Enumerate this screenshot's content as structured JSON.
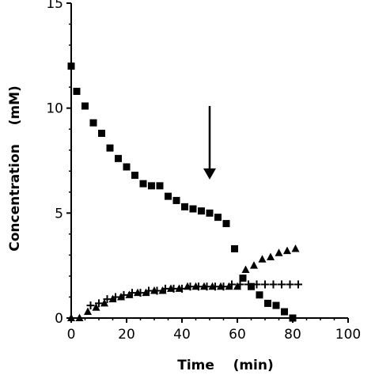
{
  "chart_data": {
    "type": "scatter",
    "title": "",
    "xlabel": "Time    (min)",
    "ylabel": "Concentration    (mM)",
    "xlim": [
      0,
      100
    ],
    "ylim": [
      0,
      15
    ],
    "xticks": [
      0,
      20,
      40,
      60,
      80,
      100
    ],
    "yticks": [
      0,
      5,
      10,
      15
    ],
    "grid": false,
    "series": [
      {
        "marker": "square",
        "x": [
          0,
          2,
          5,
          8,
          11,
          14,
          17,
          20,
          23,
          26,
          29,
          32,
          35,
          38,
          41,
          44,
          47,
          50,
          53,
          56,
          59,
          62,
          65,
          68,
          71,
          74,
          77,
          80
        ],
        "y": [
          12.0,
          10.8,
          10.1,
          9.3,
          8.8,
          8.1,
          7.6,
          7.2,
          6.8,
          6.4,
          6.3,
          6.3,
          5.8,
          5.6,
          5.3,
          5.2,
          5.1,
          5.0,
          4.8,
          4.5,
          3.3,
          1.9,
          1.5,
          1.1,
          0.7,
          0.6,
          0.3,
          0.0
        ]
      },
      {
        "marker": "triangle",
        "x": [
          0,
          3,
          6,
          9,
          12,
          15,
          18,
          21,
          24,
          27,
          30,
          33,
          36,
          39,
          42,
          45,
          48,
          51,
          54,
          57,
          60,
          63,
          66,
          69,
          72,
          75,
          78,
          81
        ],
        "y": [
          0.0,
          0.0,
          0.3,
          0.5,
          0.7,
          0.9,
          1.0,
          1.1,
          1.2,
          1.2,
          1.3,
          1.3,
          1.4,
          1.4,
          1.5,
          1.5,
          1.5,
          1.5,
          1.5,
          1.5,
          1.5,
          2.3,
          2.5,
          2.8,
          2.9,
          3.1,
          3.2,
          3.3
        ]
      },
      {
        "marker": "plus",
        "x": [
          7,
          10,
          13,
          16,
          19,
          22,
          25,
          28,
          31,
          34,
          37,
          40,
          43,
          46,
          49,
          52,
          55,
          58,
          61,
          64,
          67,
          70,
          73,
          76,
          79,
          82
        ],
        "y": [
          0.6,
          0.7,
          0.9,
          1.0,
          1.1,
          1.2,
          1.2,
          1.3,
          1.3,
          1.4,
          1.4,
          1.4,
          1.5,
          1.5,
          1.5,
          1.5,
          1.5,
          1.6,
          1.6,
          1.6,
          1.6,
          1.6,
          1.6,
          1.6,
          1.6,
          1.6
        ]
      }
    ],
    "annotations": [
      {
        "type": "arrow-down",
        "x": 50,
        "y_start": 10.1,
        "y_end": 6.6
      }
    ]
  }
}
